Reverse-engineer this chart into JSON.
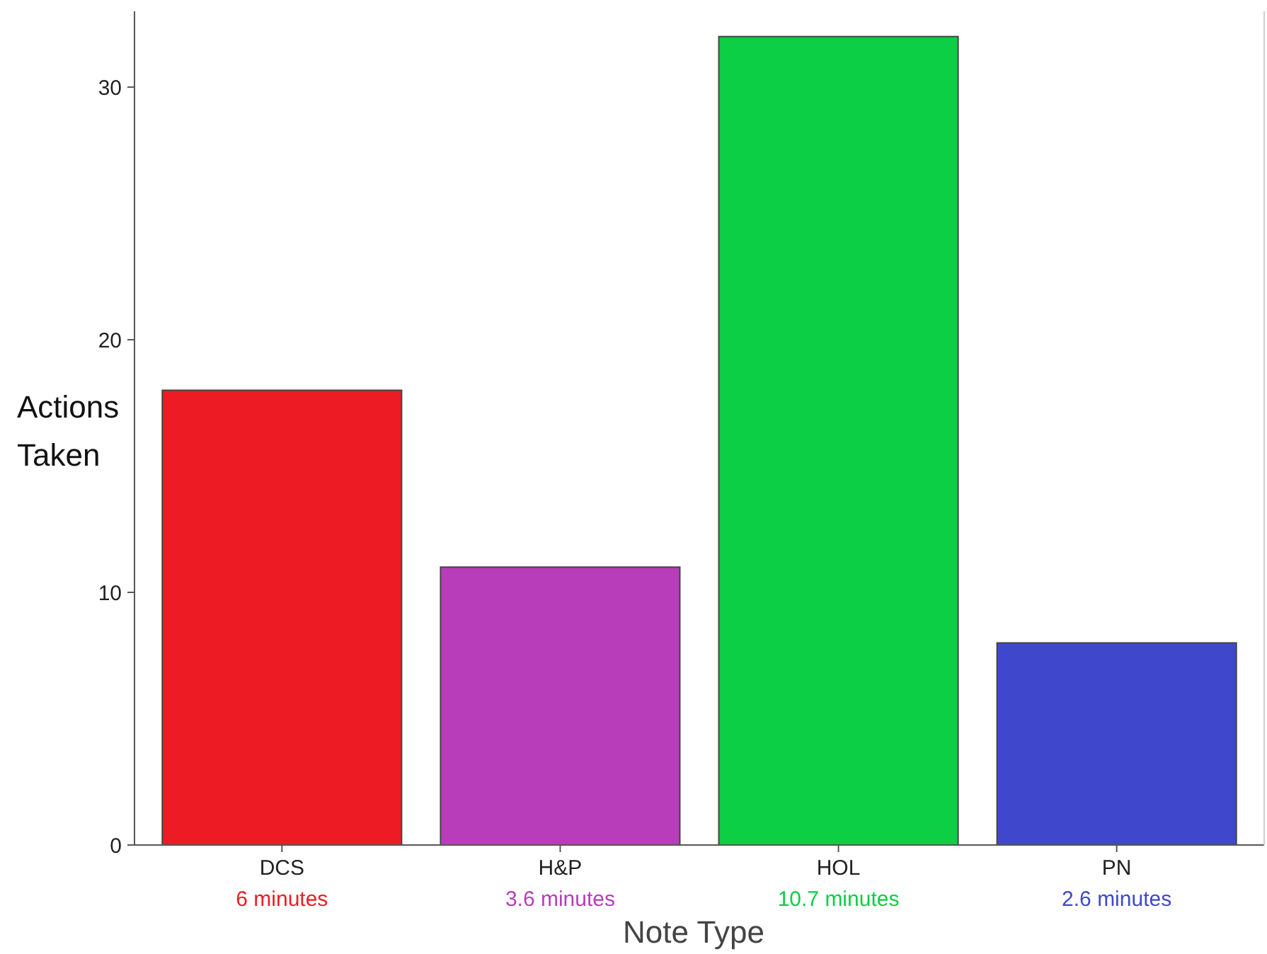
{
  "chart_data": {
    "type": "bar",
    "xlabel": "Note Type",
    "ylabel": "Actions Taken",
    "categories": [
      "DCS",
      "H&P",
      "HOL",
      "PN"
    ],
    "values": [
      18,
      11,
      32,
      8
    ],
    "colors": [
      "#ed1c24",
      "#b83dba",
      "#0ccf45",
      "#3f48cc"
    ],
    "ylim": [
      0,
      33
    ],
    "yticks": [
      0,
      10,
      20,
      30
    ],
    "grid": false,
    "annotations": [
      "6 minutes",
      "3.6 minutes",
      "10.7 minutes",
      "2.6 minutes"
    ]
  }
}
